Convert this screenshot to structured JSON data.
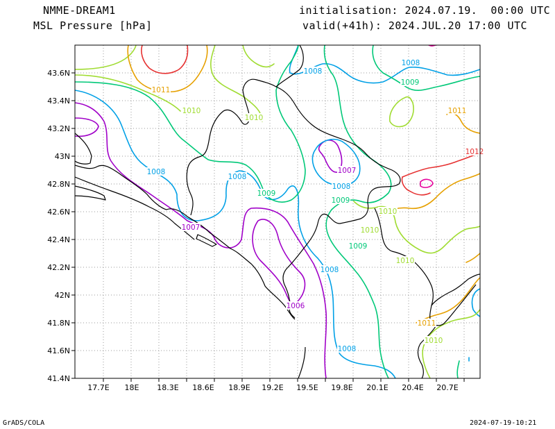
{
  "header": {
    "model": "NMME-DREAM1",
    "variable": "MSL Pressure [hPa]",
    "init_text": "initialisation: 2024.07.19.  00:00 UTC",
    "valid_text": "valid(+41h): 2024.JUL.20 17:00 UTC"
  },
  "footer": {
    "credit": "GrADS/COLA",
    "timestamp": "2024-07-19-10:21"
  },
  "axes": {
    "lon_ticks": [
      "17.7E",
      "18E",
      "18.3E",
      "18.6E",
      "18.9E",
      "19.2E",
      "19.5E",
      "19.8E",
      "20.1E",
      "20.4E",
      "20.7E"
    ],
    "lat_ticks": [
      "43.6N",
      "43.4N",
      "43.2N",
      "43N",
      "42.8N",
      "42.6N",
      "42.4N",
      "42.2N",
      "42N",
      "41.8N",
      "41.6N",
      "41.4N"
    ]
  },
  "colors": {
    "1006": "#a000c8",
    "1007": "#a000c8",
    "1008": "#00a0e6",
    "1009": "#00c878",
    "1010": "#a0dc32",
    "1011": "#e6a000",
    "1012": "#e63232",
    "1013": "#e6009b",
    "coast": "#000000",
    "grid": "#9a9a9a"
  },
  "contour_labels": [
    {
      "text": "1008",
      "level": "1008"
    },
    {
      "text": "1008",
      "level": "1008"
    },
    {
      "text": "1008",
      "level": "1008"
    },
    {
      "text": "1008",
      "level": "1008"
    },
    {
      "text": "1008",
      "level": "1008"
    },
    {
      "text": "1008",
      "level": "1008"
    },
    {
      "text": "1009",
      "level": "1009"
    },
    {
      "text": "1009",
      "level": "1009"
    },
    {
      "text": "1009",
      "level": "1009"
    },
    {
      "text": "1009",
      "level": "1009"
    },
    {
      "text": "1010",
      "level": "1010"
    },
    {
      "text": "1010",
      "level": "1010"
    },
    {
      "text": "1010",
      "level": "1010"
    },
    {
      "text": "1010",
      "level": "1010"
    },
    {
      "text": "1010",
      "level": "1010"
    },
    {
      "text": "1010",
      "level": "1010"
    },
    {
      "text": "1011",
      "level": "1011"
    },
    {
      "text": "1011",
      "level": "1011"
    },
    {
      "text": "1011",
      "level": "1011"
    },
    {
      "text": "1012",
      "level": "1012"
    },
    {
      "text": "1007",
      "level": "1007"
    },
    {
      "text": "1007",
      "level": "1007"
    },
    {
      "text": "1006",
      "level": "1006"
    }
  ]
}
